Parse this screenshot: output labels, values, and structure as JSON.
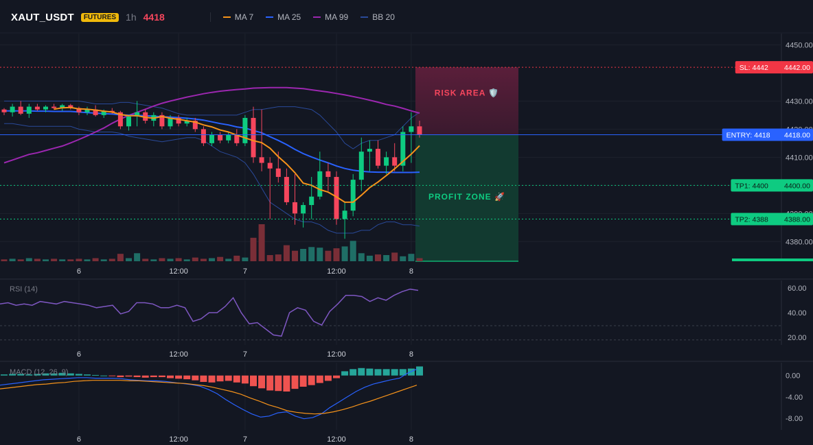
{
  "header": {
    "symbol": "XAUT_USDT",
    "badge": "FUTURES",
    "timeframe": "1h",
    "last_price": "4418",
    "legend": [
      {
        "label": "MA 7",
        "color": "#f7931a"
      },
      {
        "label": "MA 25",
        "color": "#2962ff"
      },
      {
        "label": "MA 99",
        "color": "#9c27b0"
      },
      {
        "label": "BB 20",
        "color": "#2a4a9a"
      }
    ]
  },
  "colors": {
    "up": "#0ecb81",
    "down": "#f6465d",
    "vol_up": "#26a69a",
    "vol_down": "#ef5350",
    "rsi": "#7e57c2",
    "macd_line": "#2962ff",
    "signal_line": "#f7931a",
    "bg": "#131722",
    "grid": "#1e222d"
  },
  "chart_data": [
    {
      "type": "candlestick",
      "id": "price",
      "y_axis": {
        "ylim": [
          4373,
          4454
        ],
        "ticks": [
          "4450.00",
          "4430.00",
          "4420.00",
          "4410.00",
          "4400.00",
          "4390.00",
          "4380.00"
        ]
      },
      "x_axis": {
        "ticks": [
          {
            "label": "6",
            "index": 9
          },
          {
            "label": "12:00",
            "index": 21
          },
          {
            "label": "7",
            "index": 29
          },
          {
            "label": "12:00",
            "index": 40
          },
          {
            "label": "8",
            "index": 49
          }
        ]
      },
      "candles": [
        [
          4427,
          4427.5,
          4425,
          4426
        ],
        [
          4426,
          4429,
          4424.5,
          4428
        ],
        [
          4428,
          4430,
          4425,
          4425.5
        ],
        [
          4425.5,
          4429,
          4424,
          4428
        ],
        [
          4428,
          4429,
          4426.5,
          4427
        ],
        [
          4427,
          4428.5,
          4426,
          4428
        ],
        [
          4428,
          4429,
          4427,
          4427.5
        ],
        [
          4427.5,
          4429,
          4426.5,
          4428.5
        ],
        [
          4428.5,
          4429,
          4427,
          4427.5
        ],
        [
          4427.5,
          4428,
          4425,
          4426
        ],
        [
          4426,
          4428,
          4425,
          4427
        ],
        [
          4427,
          4428.5,
          4424.5,
          4425
        ],
        [
          4425,
          4427,
          4424,
          4426.5
        ],
        [
          4426.5,
          4427.5,
          4425.5,
          4426
        ],
        [
          4426,
          4426.5,
          4420,
          4421
        ],
        [
          4421,
          4425,
          4419.5,
          4424.5
        ],
        [
          4424.5,
          4430,
          4421,
          4426
        ],
        [
          4426,
          4427,
          4422,
          4423
        ],
        [
          4423,
          4426,
          4421,
          4425
        ],
        [
          4425,
          4426,
          4420,
          4421
        ],
        [
          4421,
          4425,
          4420,
          4424
        ],
        [
          4424,
          4425,
          4421,
          4422
        ],
        [
          4422,
          4424,
          4421,
          4423
        ],
        [
          4423,
          4424,
          4419,
          4420
        ],
        [
          4420,
          4421,
          4414,
          4415
        ],
        [
          4415,
          4419,
          4414,
          4418
        ],
        [
          4418,
          4419,
          4415,
          4416
        ],
        [
          4416,
          4419,
          4415,
          4418
        ],
        [
          4418,
          4420,
          4414,
          4415
        ],
        [
          4415,
          4425,
          4414,
          4424
        ],
        [
          4424,
          4428,
          4408,
          4410
        ],
        [
          4410,
          4427,
          4405,
          4408
        ],
        [
          4408,
          4410,
          4388,
          4406
        ],
        [
          4406,
          4412,
          4401,
          4403
        ],
        [
          4403,
          4406,
          4393,
          4394
        ],
        [
          4394,
          4404,
          4386,
          4390
        ],
        [
          4390,
          4394,
          4385,
          4393
        ],
        [
          4393,
          4403,
          4388,
          4396
        ],
        [
          4396,
          4412,
          4395,
          4405
        ],
        [
          4405,
          4408,
          4398,
          4403
        ],
        [
          4403,
          4405,
          4386,
          4388
        ],
        [
          4388,
          4394,
          4381,
          4391
        ],
        [
          4391,
          4404,
          4389,
          4402
        ],
        [
          4402,
          4417,
          4398,
          4412
        ],
        [
          4412,
          4416,
          4405,
          4413
        ],
        [
          4413,
          4416,
          4406,
          4407
        ],
        [
          4407,
          4412,
          4404,
          4410
        ],
        [
          4410,
          4415,
          4405,
          4407
        ],
        [
          4407,
          4421,
          4405,
          4419
        ],
        [
          4419,
          4426,
          4408,
          4421
        ],
        [
          4421,
          4423,
          4417,
          4418
        ]
      ],
      "volume": [
        3,
        4,
        3,
        5,
        4,
        3,
        4,
        3,
        3,
        4,
        3,
        5,
        3,
        4,
        12,
        5,
        13,
        4,
        3,
        5,
        4,
        5,
        3,
        6,
        4,
        5,
        7,
        4,
        9,
        6,
        38,
        60,
        10,
        11,
        26,
        17,
        20,
        23,
        22,
        17,
        21,
        24,
        33,
        13,
        9,
        11,
        10,
        14,
        8,
        12,
        5
      ],
      "ma7": [
        null,
        null,
        null,
        null,
        null,
        null,
        4427.1,
        4427.6,
        4427.7,
        4427.2,
        4427.1,
        4426.8,
        4426.4,
        4426.1,
        4425.2,
        4424.8,
        4424.8,
        4424.2,
        4423.9,
        4424.5,
        4423.9,
        4423.5,
        4423,
        4422.5,
        4421.5,
        4420.8,
        4419.7,
        4419,
        4417.9,
        4416.9,
        4415.9,
        4415.2,
        4413.2,
        4410.2,
        4407.6,
        4404.5,
        4400.8,
        4400,
        4398.5,
        4397.6,
        4395.9,
        4394,
        4394,
        4396.5,
        4399.2,
        4401.2,
        4403.5,
        4405.9,
        4408.5,
        4411.1,
        4414.1
      ],
      "ma25": [
        4426.5,
        4426.5,
        4426.5,
        4426.5,
        4426.4,
        4426.4,
        4426.3,
        4426.3,
        4426.3,
        4426.1,
        4425.9,
        4425.7,
        4425.5,
        4425.4,
        4425.1,
        4425,
        4424.9,
        4424.8,
        4424.6,
        4424.4,
        4424.3,
        4424.1,
        4423.9,
        4423.6,
        4423.2,
        4422.6,
        4422,
        4421.5,
        4420.8,
        4420.4,
        4419.5,
        4418.7,
        4417.3,
        4416,
        4414.5,
        4412.8,
        4411.3,
        4410.1,
        4409,
        4408,
        4406.9,
        4406,
        4405.4,
        4405,
        4404.8,
        4404.7,
        4404.7,
        4404.6,
        4404.6,
        4404.6,
        4404.7
      ],
      "ma99": [
        4408,
        4409,
        4410,
        4411,
        4411.6,
        4412.4,
        4413.2,
        4414,
        4415.1,
        4416.3,
        4417.6,
        4419,
        4420.4,
        4422.1,
        4423.6,
        4424.9,
        4426,
        4427.1,
        4428.2,
        4429.2,
        4430,
        4430.7,
        4431.4,
        4432,
        4432.6,
        4433.1,
        4433.5,
        4433.8,
        4434.1,
        4434.3,
        4434.6,
        4434.7,
        4434.8,
        4434.8,
        4434.8,
        4434.6,
        4434.4,
        4434,
        4433.6,
        4433.2,
        4432.7,
        4432.2,
        4431.6,
        4431,
        4430.3,
        4429.6,
        4428.8,
        4428.2,
        4427.4,
        4426.5,
        4425.7
      ],
      "bb_upper": [
        4430,
        4430,
        4430,
        4430,
        4430,
        4430,
        4430,
        4430,
        4430,
        4430,
        4429.5,
        4429,
        4429,
        4429,
        4429.5,
        4429.5,
        4429,
        4428.5,
        4428,
        4427.5,
        4426.5,
        4425.5,
        4425,
        4425,
        4425,
        4425,
        4425,
        4425,
        4425,
        4426,
        4427,
        4427,
        4427.5,
        4428,
        4428,
        4428,
        4427.5,
        4427,
        4425,
        4422,
        4419,
        4415,
        4413,
        4415,
        4416,
        4416,
        4417,
        4418,
        4421,
        4424,
        4426
      ],
      "bb_lower": [
        4422,
        4422,
        4421.5,
        4421,
        4421,
        4421,
        4421,
        4421,
        4421,
        4420,
        4419.5,
        4419,
        4419,
        4419,
        4418.5,
        4417.5,
        4417,
        4416.5,
        4416,
        4415.5,
        4416,
        4416.5,
        4417,
        4417,
        4416,
        4414,
        4412,
        4411,
        4410,
        4408,
        4404,
        4399,
        4394,
        4392,
        4390,
        4388,
        4387,
        4387,
        4386,
        4384,
        4383,
        4383,
        4383,
        4384,
        4384,
        4386,
        4387,
        4387,
        4386,
        4386,
        4385.5
      ],
      "lines": [
        {
          "label": "SL: 4442",
          "value_label": "4442.00",
          "value": 4442,
          "color": "#f23645"
        },
        {
          "label": "ENTRY: 4418",
          "value_label": "4418.00",
          "value": 4418,
          "color": "#2962ff"
        },
        {
          "label": "TP1: 4400",
          "value_label": "4400.00",
          "value": 4400,
          "color": "#0ecb81"
        },
        {
          "label": "TP2: 4388",
          "value_label": "4388.00",
          "value": 4388,
          "color": "#0ecb81"
        }
      ],
      "zones": [
        {
          "label": "RISK AREA 🛡️",
          "from": 4418,
          "to": 4442,
          "color": "#f6465d"
        },
        {
          "label": "PROFIT ZONE 🚀",
          "from": 4373,
          "to": 4418,
          "color": "#0ecb81"
        }
      ]
    },
    {
      "type": "line",
      "id": "rsi",
      "title": "RSI (14)",
      "ylim": [
        14,
        66
      ],
      "y_ticks": [
        "60.00",
        "40.00",
        "20.00"
      ],
      "levels": [
        70,
        30
      ],
      "x_axis": {
        "ticks": [
          {
            "label": "6",
            "index": 9
          },
          {
            "label": "12:00",
            "index": 21
          },
          {
            "label": "7",
            "index": 29
          },
          {
            "label": "12:00",
            "index": 40
          },
          {
            "label": "8",
            "index": 49
          }
        ]
      },
      "values": [
        47,
        48,
        46,
        47,
        46,
        49,
        48,
        47,
        49,
        48,
        47,
        46,
        44,
        45,
        46,
        39,
        41,
        48,
        48,
        47,
        44,
        44,
        46,
        44,
        33,
        35,
        40,
        40,
        45,
        52,
        40,
        31,
        32,
        27,
        22,
        21,
        40,
        44,
        42,
        33,
        30,
        41,
        47,
        54,
        54,
        53,
        49,
        52,
        50,
        54,
        57,
        59,
        58
      ]
    },
    {
      "type": "bar_line",
      "id": "macd",
      "title": "MACD (12, 26, 9)",
      "ylim": [
        -10.2,
        2.4
      ],
      "y_ticks": [
        "0.00",
        "-4.00",
        "-8.00"
      ],
      "x_axis": {
        "ticks": [
          {
            "label": "6",
            "index": 9
          },
          {
            "label": "12:00",
            "index": 21
          },
          {
            "label": "7",
            "index": 29
          },
          {
            "label": "12:00",
            "index": 40
          },
          {
            "label": "8",
            "index": 49
          }
        ]
      },
      "histogram": [
        0.2,
        0.3,
        0.3,
        0.2,
        0.3,
        0.4,
        0.4,
        0.5,
        0.4,
        0.3,
        0.2,
        0.1,
        0,
        -0.1,
        -0.3,
        -0.2,
        -0.3,
        -0.4,
        -0.3,
        -0.3,
        -0.5,
        -0.6,
        -0.7,
        -0.9,
        -1.2,
        -1.3,
        -1.1,
        -1,
        -1.3,
        -1.5,
        -2,
        -2.4,
        -2.8,
        -2.9,
        -3,
        -2.5,
        -2.1,
        -1.8,
        -1.4,
        -1,
        -0.5,
        0.8,
        1.2,
        1.4,
        1.3,
        1.2,
        1.2,
        1.2,
        1.2,
        1.3,
        1.7
      ],
      "macd": [
        -1.8,
        -1.6,
        -1.4,
        -1.2,
        -1,
        -0.8,
        -0.7,
        -0.6,
        -0.5,
        -0.4,
        -0.4,
        -0.5,
        -0.5,
        -0.5,
        -0.6,
        -0.8,
        -0.9,
        -1,
        -1,
        -1.1,
        -1.3,
        -1.5,
        -1.7,
        -2,
        -2.6,
        -3.4,
        -4.5,
        -5.5,
        -6.4,
        -7.2,
        -7.8,
        -7.6,
        -7,
        -6.8,
        -7.6,
        -8.1,
        -7.9,
        -7.2,
        -6,
        -5,
        -4,
        -3,
        -2.2,
        -1.6,
        -1.2,
        -0.8,
        -0.5,
        0.5,
        1.2
      ],
      "signal": [
        -2.5,
        -2.3,
        -2.1,
        -1.9,
        -1.7,
        -1.6,
        -1.4,
        -1.3,
        -1.1,
        -1,
        -0.9,
        -0.9,
        -0.9,
        -0.9,
        -1,
        -1,
        -1.1,
        -1.2,
        -1.3,
        -1.4,
        -1.5,
        -1.7,
        -1.9,
        -2.2,
        -2.6,
        -3,
        -3.5,
        -4.2,
        -4.8,
        -5.5,
        -6,
        -6.6,
        -6.9,
        -7.1,
        -7.2,
        -7.1,
        -6.8,
        -6.4,
        -5.9,
        -5.3,
        -4.8,
        -4.2,
        -3.6,
        -3,
        -2.4,
        -1.8
      ]
    }
  ]
}
